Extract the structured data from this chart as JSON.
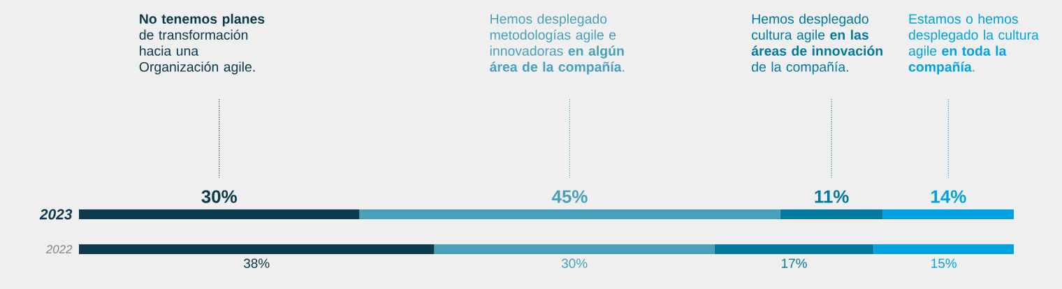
{
  "chart_data": {
    "type": "bar",
    "orientation": "horizontal",
    "stacked": true,
    "tick_labels": "y",
    "categories": [
      "2023",
      "2022"
    ],
    "series": [
      {
        "name": "**No tenemos planes** de transformación hacia una Organización agile.",
        "color": "#0d3a4d",
        "values": [
          30,
          38
        ],
        "value_labels": [
          "30%",
          "38%"
        ]
      },
      {
        "name": "Hemos desplegado metodologías agile e innovadoras **en algún área de la compañía**.",
        "color": "#48a0bb",
        "values": [
          45,
          30
        ],
        "value_labels": [
          "45%",
          "30%"
        ]
      },
      {
        "name": "Hemos desplegado cultura agile **en las áreas de innovación** de la compañía.",
        "color": "#027aa0",
        "values": [
          11,
          17
        ],
        "value_labels": [
          "11%",
          "17%"
        ]
      },
      {
        "name": "Estamos o hemos desplegado la cultura agile **en toda la compañía**.",
        "color": "#00a3e0",
        "values": [
          14,
          15
        ],
        "value_labels": [
          "14%",
          "15%"
        ]
      }
    ]
  }
}
